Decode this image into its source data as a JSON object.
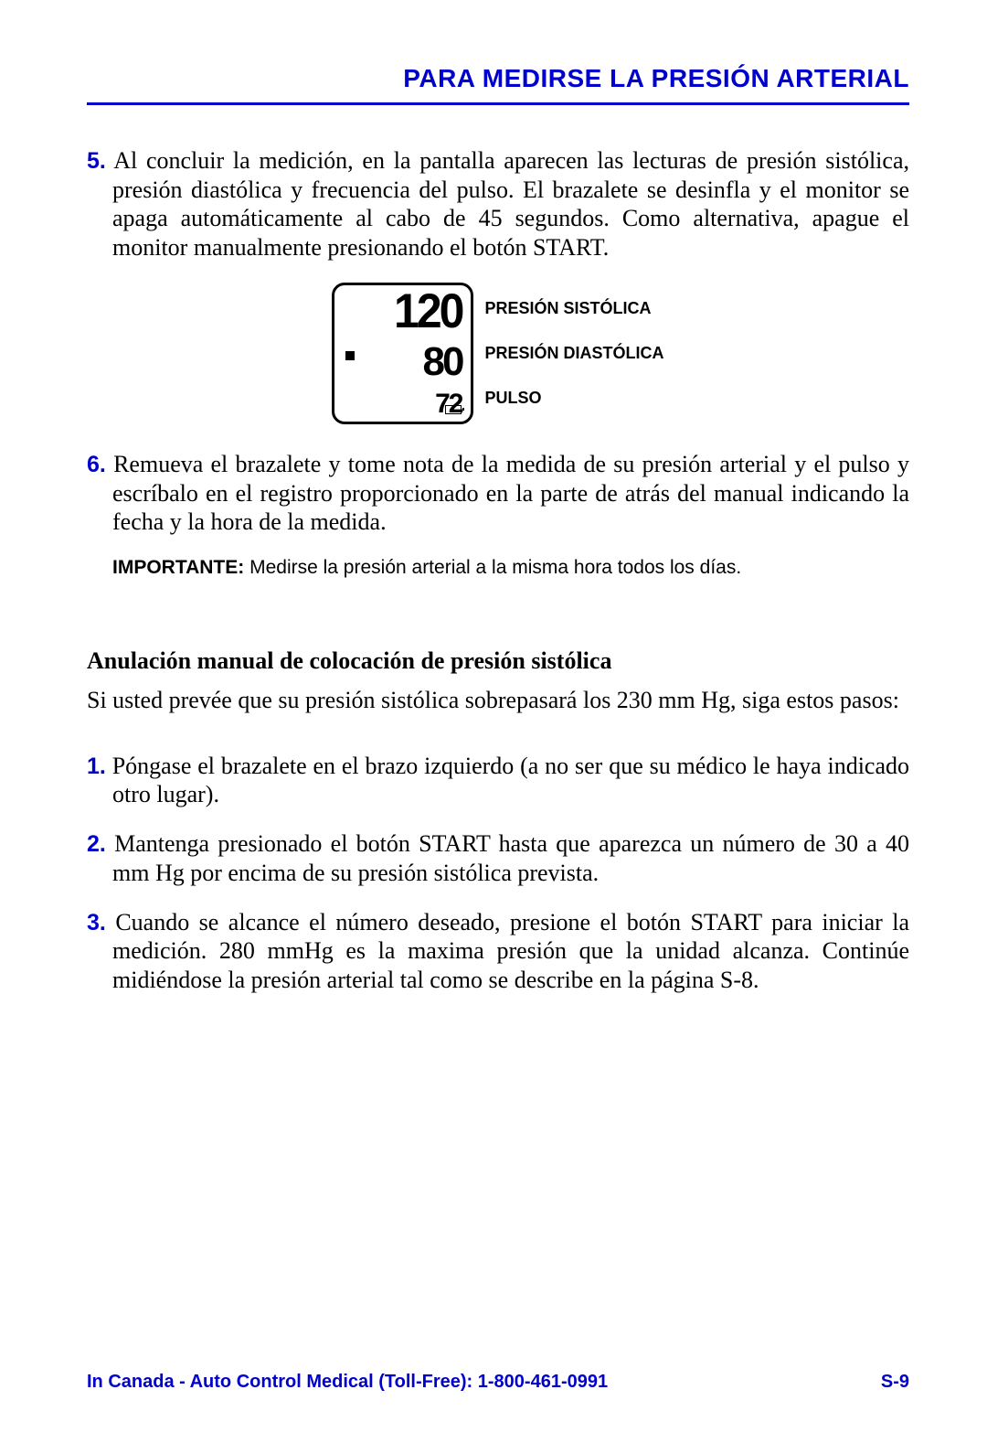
{
  "header": {
    "title": "PARA MEDIRSE LA PRESIÓN ARTERIAL",
    "color": "#0000cc"
  },
  "steps_a": [
    {
      "n": "5.",
      "text": "Al concluir la medición, en la pantalla aparecen las lecturas de presión sistólica, presión diastólica y frecuencia del pulso. El brazalete se desinfla y el monitor se apaga automáticamente al cabo de 45 segundos. Como alternativa, apague el monitor manualmente presionando el botón START."
    }
  ],
  "display": {
    "systolic": "120",
    "diastolic": "80",
    "pulse": "72",
    "labels": {
      "systolic": "PRESIÓN SISTÓLICA",
      "diastolic": "PRESIÓN DIASTÓLICA",
      "pulse": "PULSO"
    }
  },
  "steps_b": [
    {
      "n": "6.",
      "text": "Remueva el brazalete y tome nota de la medida de su presión arterial y el pulso y escríbalo en el registro proporcionado en la parte de atrás del manual indicando la fecha y la hora de la medida."
    }
  ],
  "note": {
    "label": "IMPORTANTE:",
    "text": " Medirse la presión arterial a la misma hora todos los días."
  },
  "section2": {
    "heading": "Anulación manual de colocación de presión sistólica",
    "intro": "Si usted prevée que su presión sistólica sobrepasará los 230 mm Hg, siga estos pasos:",
    "steps": [
      {
        "n": "1.",
        "text": "Póngase el brazalete en el brazo izquierdo (a no ser que su médico le haya indicado otro lugar)."
      },
      {
        "n": "2.",
        "text": "Mantenga presionado el botón START hasta que aparezca un número de 30 a 40 mm Hg por encima de su presión sistólica prevista."
      },
      {
        "n": "3.",
        "text": "Cuando se alcance el número deseado, presione el botón START para iniciar la medición. 280 mmHg es la maxima presión que la unidad alcanza. Continúe midiéndose la presión arterial tal como se describe en la página S-8."
      }
    ]
  },
  "footer": {
    "left": "In Canada - Auto Control Medical (Toll-Free): 1-800-461-0991",
    "right": "S-9"
  }
}
